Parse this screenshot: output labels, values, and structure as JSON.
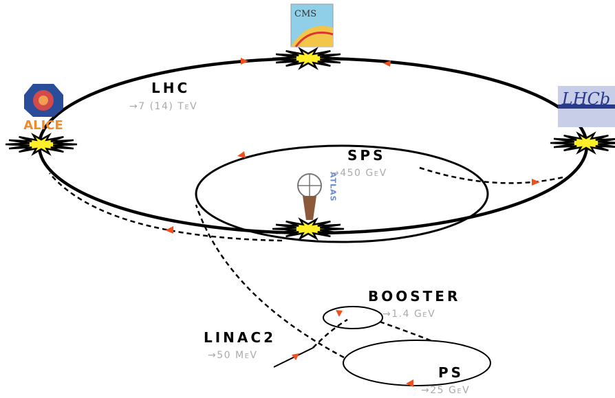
{
  "rings": [
    {
      "name": "LHC",
      "energy": "→7 (14) TeV"
    },
    {
      "name": "SPS",
      "energy": "→450 GeV"
    },
    {
      "name": "BOOSTER",
      "energy": "→1.4 GeV"
    },
    {
      "name": "LINAC2",
      "energy": "→50 MeV"
    },
    {
      "name": "PS",
      "energy": "→25 GeV"
    }
  ],
  "experiments": [
    "CMS",
    "ALICE",
    "LHCb",
    "ATLAS"
  ]
}
